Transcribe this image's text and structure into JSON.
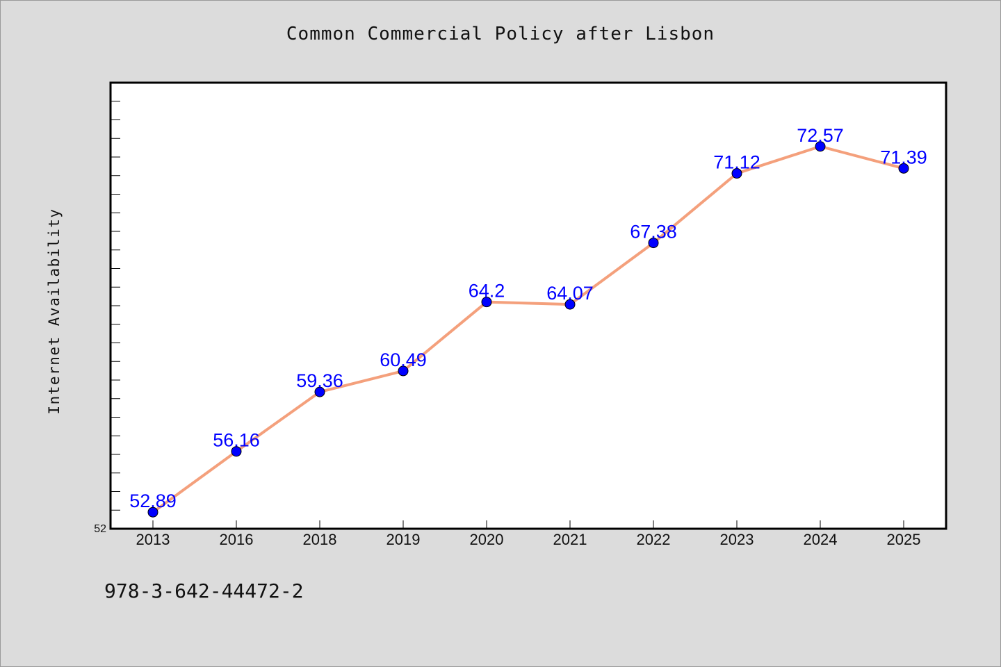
{
  "chart_data": {
    "type": "line",
    "title": "Common Commercial Policy after Lisbon",
    "xlabel": "",
    "ylabel": "Internet Availability",
    "categories": [
      "2013",
      "2016",
      "2018",
      "2019",
      "2020",
      "2021",
      "2022",
      "2023",
      "2024",
      "2025"
    ],
    "values": [
      52.89,
      56.16,
      59.36,
      60.49,
      64.2,
      64.07,
      67.38,
      71.12,
      72.57,
      71.39
    ],
    "value_labels": [
      "52.89",
      "56.16",
      "59.36",
      "60.49",
      "64.2",
      "64.07",
      "67.38",
      "71.12",
      "72.57",
      "71.39"
    ],
    "ylim": [
      52,
      76
    ],
    "y_tick_labels": [
      "52"
    ],
    "grid": false,
    "legend": "none",
    "colors": {
      "line": "#f4a07c",
      "marker": "#0000ff",
      "data_label": "#0000ff",
      "background": "#dcdcdc",
      "plot_background": "#ffffff"
    }
  },
  "footer_text": "978-3-642-44472-2"
}
